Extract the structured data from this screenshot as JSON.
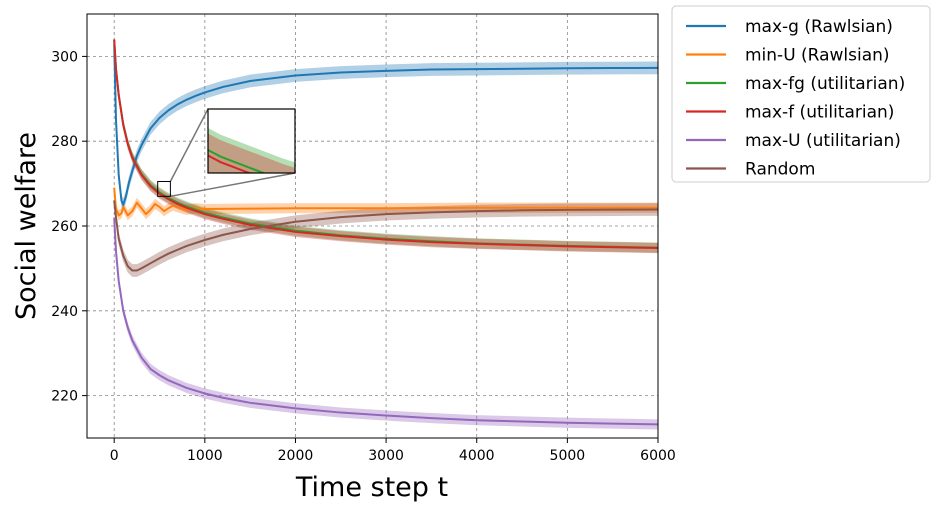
{
  "chart_data": {
    "type": "line",
    "title": "",
    "xlabel": "Time step t",
    "ylabel": "Social welfare",
    "xlim": [
      -300,
      6000
    ],
    "ylim": [
      210,
      310
    ],
    "xticks": [
      0,
      1000,
      2000,
      3000,
      4000,
      5000,
      6000
    ],
    "yticks": [
      220,
      240,
      260,
      280,
      300
    ],
    "grid": true,
    "legend_position": "outside-top-right",
    "colors": {
      "max_g": "#1f77b4",
      "min_U": "#ff7f0e",
      "max_fg": "#2ca02c",
      "max_f": "#d62728",
      "max_U": "#9467bd",
      "random": "#8c564b"
    },
    "series": [
      {
        "name": "max-g (Rawlsian)",
        "color": "#1f77b4",
        "band": 1.5,
        "x": [
          0,
          20,
          50,
          80,
          100,
          130,
          160,
          200,
          250,
          300,
          400,
          500,
          600,
          700,
          800,
          900,
          1000,
          1200,
          1500,
          2000,
          2500,
          3000,
          3500,
          4000,
          4500,
          5000,
          5500,
          6000
        ],
        "y": [
          303,
          285,
          272,
          266,
          265,
          267,
          270,
          273,
          276.5,
          279,
          283,
          285.5,
          287.3,
          288.7,
          289.8,
          290.7,
          291.5,
          292.8,
          294.2,
          295.5,
          296.2,
          296.6,
          296.9,
          297,
          297.1,
          297.2,
          297.25,
          297.3
        ]
      },
      {
        "name": "min-U (Rawlsian)",
        "color": "#ff7f0e",
        "band": 1.2,
        "x": [
          0,
          20,
          50,
          80,
          100,
          150,
          200,
          250,
          300,
          350,
          400,
          450,
          500,
          550,
          600,
          650,
          700,
          800,
          900,
          1000,
          1500,
          2000,
          3000,
          4000,
          5000,
          6000
        ],
        "y": [
          269,
          264,
          262.5,
          263,
          264.5,
          262.5,
          263.5,
          265.5,
          264.2,
          262.8,
          263.8,
          265.2,
          264.5,
          263.5,
          264.2,
          264.8,
          264.4,
          263.8,
          264.2,
          264,
          264.1,
          264.2,
          264.2,
          264.3,
          264.3,
          264.3
        ]
      },
      {
        "name": "max-fg (utilitarian)",
        "color": "#2ca02c",
        "band": 1.2,
        "x": [
          0,
          20,
          50,
          100,
          150,
          200,
          300,
          400,
          500,
          600,
          700,
          800,
          1000,
          1200,
          1500,
          2000,
          2500,
          3000,
          3500,
          4000,
          5000,
          6000
        ],
        "y": [
          304,
          297,
          291,
          284,
          279.5,
          276.3,
          272.3,
          269.7,
          267.9,
          266.6,
          265.5,
          264.6,
          263.1,
          262,
          260.6,
          258.9,
          257.8,
          257,
          256.4,
          255.9,
          255.3,
          254.9
        ]
      },
      {
        "name": "max-f (utilitarian)",
        "color": "#d62728",
        "band": 1.2,
        "x": [
          0,
          20,
          50,
          100,
          150,
          200,
          300,
          400,
          500,
          600,
          700,
          800,
          1000,
          1200,
          1500,
          2000,
          2500,
          3000,
          3500,
          4000,
          5000,
          6000
        ],
        "y": [
          304,
          297,
          290.8,
          283.8,
          279.3,
          276.1,
          272.1,
          269.4,
          267.6,
          266.3,
          265.2,
          264.3,
          262.8,
          261.7,
          260.3,
          258.6,
          257.6,
          256.8,
          256.2,
          255.8,
          255.2,
          254.8
        ]
      },
      {
        "name": "max-U (utilitarian)",
        "color": "#9467bd",
        "band": 1.2,
        "x": [
          0,
          20,
          50,
          100,
          150,
          200,
          300,
          400,
          500,
          600,
          800,
          1000,
          1200,
          1500,
          2000,
          2500,
          3000,
          3500,
          4000,
          4500,
          5000,
          5500,
          6000
        ],
        "y": [
          262,
          254,
          247,
          240,
          236,
          233,
          229,
          226.3,
          224.8,
          223.6,
          221.8,
          220.5,
          219.5,
          218.3,
          217,
          216,
          215.3,
          214.7,
          214.2,
          213.9,
          213.6,
          213.4,
          213.2
        ]
      },
      {
        "name": "Random",
        "color": "#8c564b",
        "band": 1.5,
        "x": [
          0,
          20,
          50,
          100,
          150,
          200,
          250,
          300,
          400,
          500,
          600,
          700,
          800,
          1000,
          1200,
          1500,
          2000,
          2500,
          3000,
          3500,
          4000,
          4500,
          5000,
          5500,
          6000
        ],
        "y": [
          266,
          262,
          257,
          253,
          250.5,
          249.5,
          249.5,
          250,
          251.2,
          252.4,
          253.5,
          254.4,
          255.3,
          256.7,
          257.9,
          259.3,
          261,
          262.1,
          262.8,
          263.2,
          263.5,
          263.7,
          263.8,
          263.85,
          263.9
        ]
      }
    ],
    "inset": {
      "xlim": [
        480,
        620
      ],
      "ylim": [
        267,
        270.5
      ]
    }
  }
}
